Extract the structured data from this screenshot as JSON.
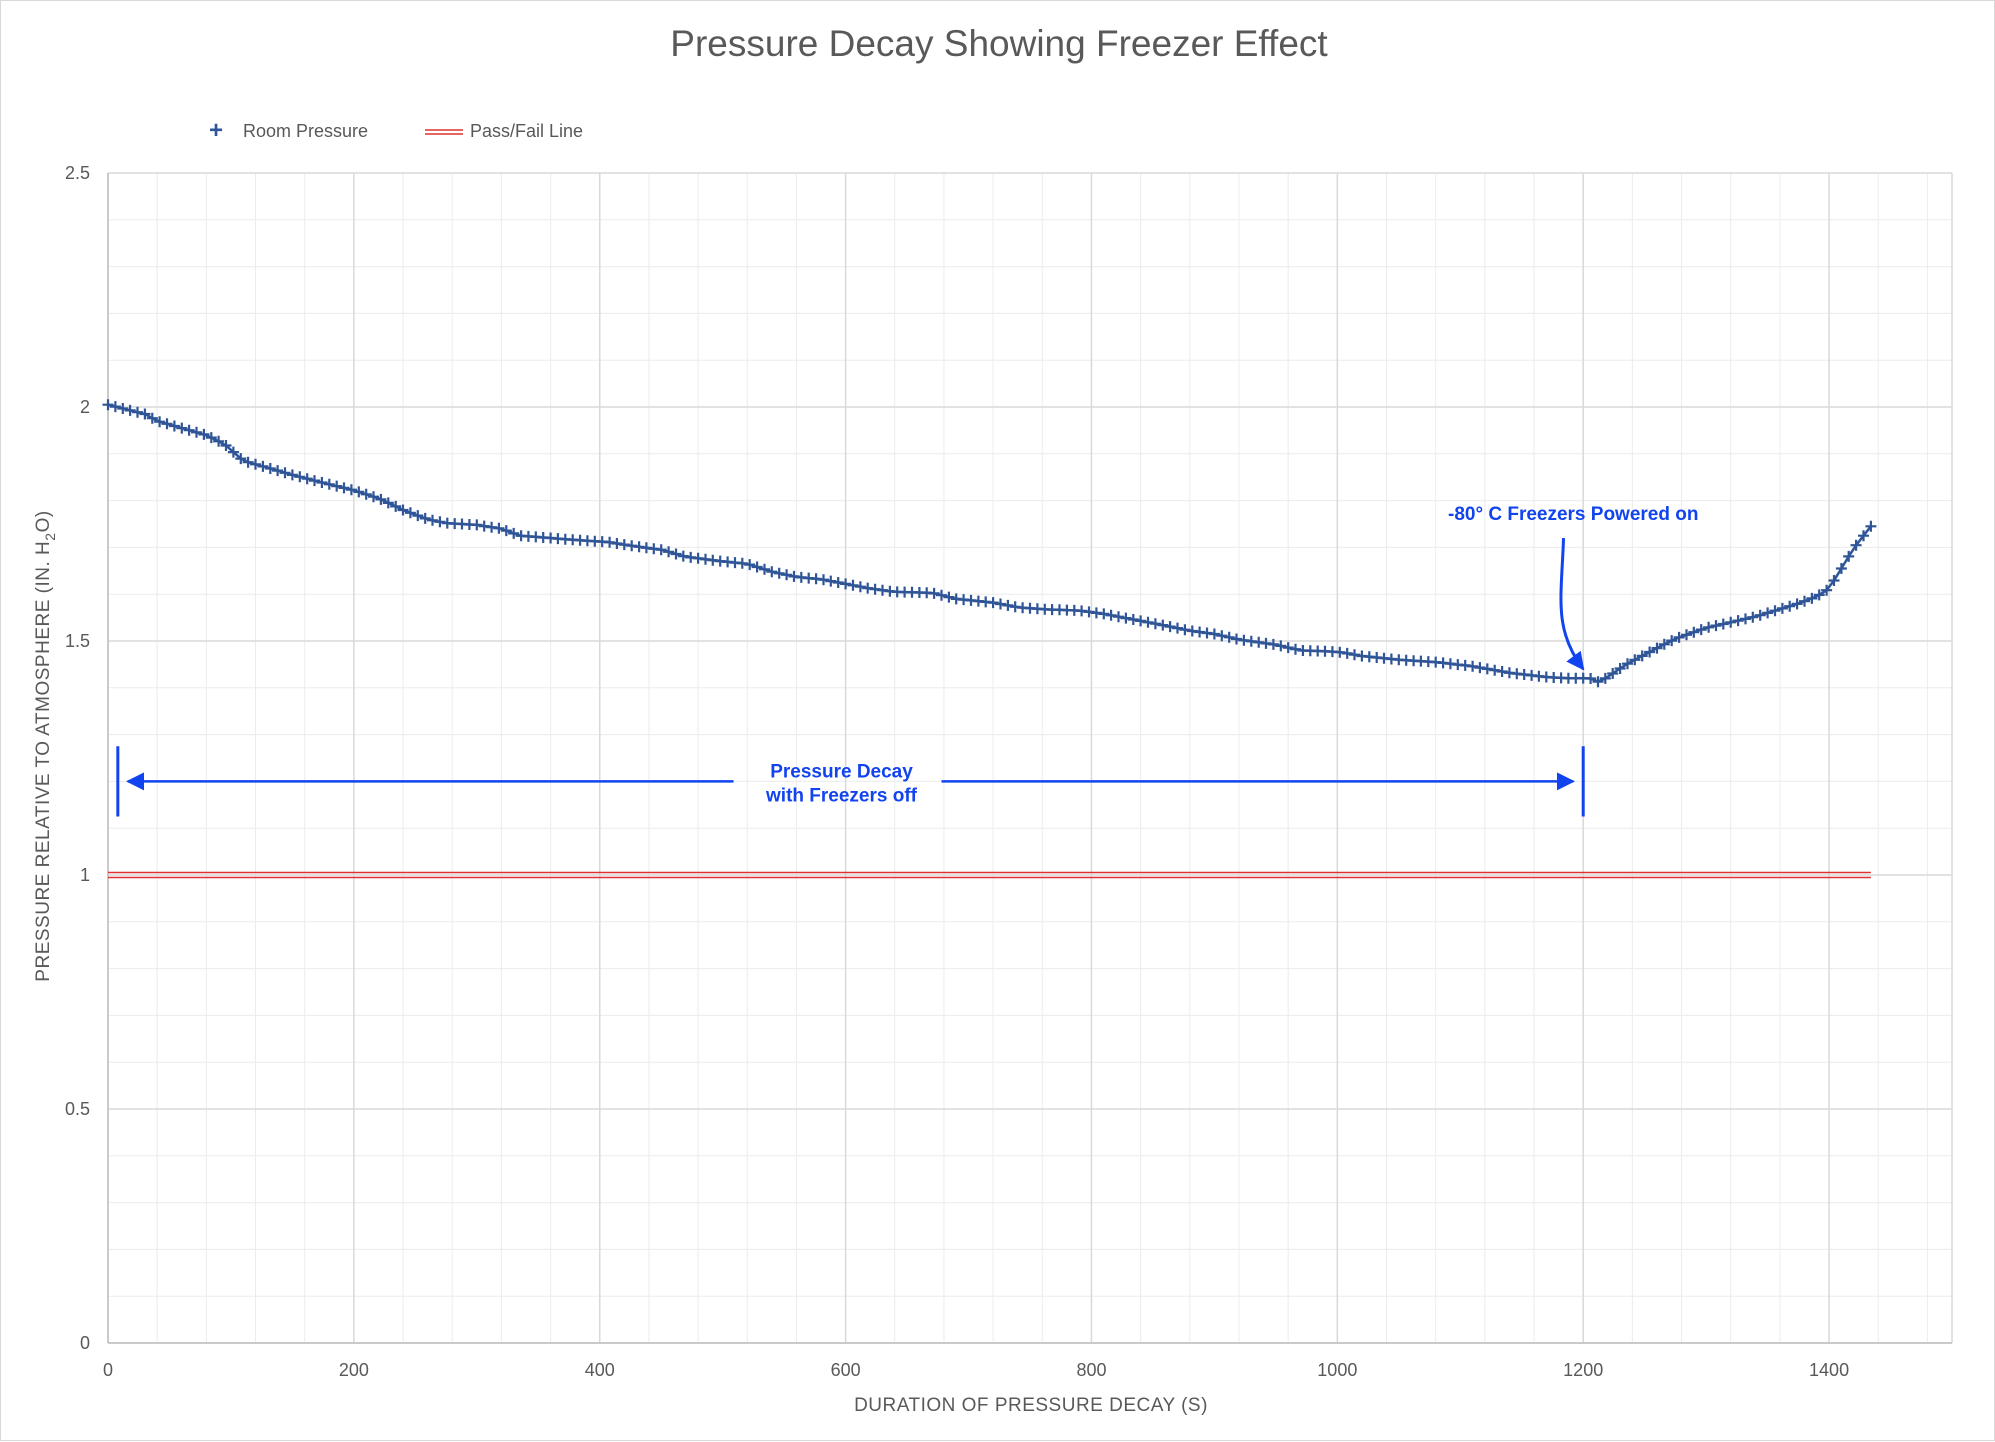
{
  "chart_data": {
    "type": "scatter",
    "title": "Pressure Decay Showing Freezer Effect",
    "xlabel": "DURATION OF PRESSURE DECAY (S)",
    "ylabel_prefix": "PRESSURE RELATIVE TO ATMOSPHERE (IN. H",
    "ylabel_sub": "2",
    "ylabel_suffix": "O)",
    "xlim": [
      0,
      1500
    ],
    "ylim": [
      0,
      2.5
    ],
    "x_major_step": 200,
    "x_minor_step": 40,
    "y_major_step": 0.5,
    "y_minor_step": 0.1,
    "x_tick_labels": [
      "0",
      "200",
      "400",
      "600",
      "800",
      "1000",
      "1200",
      "1400"
    ],
    "y_tick_labels": [
      "0",
      "0.5",
      "1",
      "1.5",
      "2",
      "2.5"
    ],
    "legend": {
      "position": "top-left",
      "entries": [
        "Room Pressure",
        "Pass/Fail Line"
      ],
      "marker_glyph": "+"
    },
    "colors": {
      "series": "#2f5597",
      "passfail": "#e03030",
      "annotation": "#1144ee",
      "grid": "#d9d9d9",
      "grid_minor": "#ececec"
    },
    "series": [
      {
        "name": "Room Pressure",
        "marker": "plus",
        "sample_step": 6,
        "x_start": 0,
        "x_end": 1434,
        "anchors": [
          [
            0,
            2.005
          ],
          [
            10,
            1.998
          ],
          [
            30,
            1.985
          ],
          [
            40,
            1.97
          ],
          [
            60,
            1.955
          ],
          [
            80,
            1.94
          ],
          [
            95,
            1.92
          ],
          [
            110,
            1.885
          ],
          [
            130,
            1.87
          ],
          [
            150,
            1.855
          ],
          [
            175,
            1.838
          ],
          [
            200,
            1.822
          ],
          [
            220,
            1.805
          ],
          [
            240,
            1.78
          ],
          [
            260,
            1.76
          ],
          [
            275,
            1.752
          ],
          [
            300,
            1.748
          ],
          [
            320,
            1.74
          ],
          [
            335,
            1.725
          ],
          [
            360,
            1.72
          ],
          [
            390,
            1.714
          ],
          [
            405,
            1.712
          ],
          [
            430,
            1.702
          ],
          [
            450,
            1.695
          ],
          [
            470,
            1.68
          ],
          [
            500,
            1.67
          ],
          [
            520,
            1.665
          ],
          [
            540,
            1.648
          ],
          [
            560,
            1.637
          ],
          [
            580,
            1.632
          ],
          [
            600,
            1.622
          ],
          [
            620,
            1.612
          ],
          [
            640,
            1.605
          ],
          [
            670,
            1.603
          ],
          [
            690,
            1.59
          ],
          [
            720,
            1.582
          ],
          [
            740,
            1.572
          ],
          [
            760,
            1.568
          ],
          [
            790,
            1.565
          ],
          [
            810,
            1.558
          ],
          [
            830,
            1.548
          ],
          [
            860,
            1.533
          ],
          [
            880,
            1.522
          ],
          [
            900,
            1.515
          ],
          [
            920,
            1.503
          ],
          [
            950,
            1.492
          ],
          [
            970,
            1.48
          ],
          [
            1000,
            1.477
          ],
          [
            1020,
            1.468
          ],
          [
            1050,
            1.46
          ],
          [
            1080,
            1.455
          ],
          [
            1110,
            1.446
          ],
          [
            1140,
            1.432
          ],
          [
            1170,
            1.423
          ],
          [
            1190,
            1.42
          ],
          [
            1205,
            1.421
          ],
          [
            1212,
            1.413
          ],
          [
            1218,
            1.42
          ],
          [
            1235,
            1.45
          ],
          [
            1255,
            1.478
          ],
          [
            1275,
            1.505
          ],
          [
            1300,
            1.528
          ],
          [
            1320,
            1.54
          ],
          [
            1340,
            1.552
          ],
          [
            1360,
            1.568
          ],
          [
            1375,
            1.58
          ],
          [
            1390,
            1.595
          ],
          [
            1400,
            1.612
          ],
          [
            1410,
            1.655
          ],
          [
            1420,
            1.698
          ],
          [
            1428,
            1.725
          ],
          [
            1434,
            1.745
          ]
        ]
      },
      {
        "name": "Pass/Fail Line",
        "x": [
          0,
          1434
        ],
        "y": [
          1,
          1
        ]
      }
    ],
    "annotations": {
      "freezers_on": {
        "text": "-80° C Freezers Powered on",
        "arrow_from": [
          1184,
          1.72
        ],
        "arrow_to": [
          1200,
          1.44
        ]
      },
      "decay": {
        "line1": "Pressure Decay",
        "line2": "with Freezers off",
        "x_from": 8,
        "x_to": 1200,
        "y": 1.2,
        "bar_half_height": 0.075
      }
    }
  }
}
